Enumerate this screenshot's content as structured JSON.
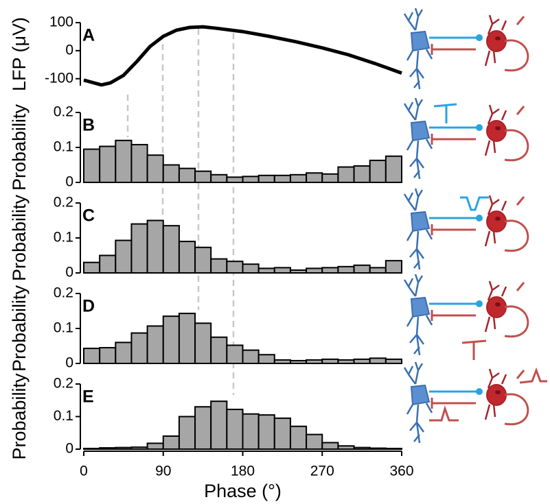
{
  "chart_data": [
    {
      "type": "line",
      "label": "A",
      "ylabel": "LFP (μV)",
      "color": "#000000",
      "x": [
        0,
        20,
        30,
        45,
        60,
        75,
        90,
        105,
        120,
        135,
        150,
        180,
        210,
        240,
        270,
        300,
        330,
        360
      ],
      "values": [
        -105,
        -122,
        -115,
        -88,
        -39,
        15,
        51,
        73,
        83,
        85,
        80,
        68,
        51,
        32,
        10,
        -15,
        -46,
        -80
      ],
      "xlim": [
        0,
        360
      ],
      "ylim": [
        -125,
        100
      ],
      "yticks": [
        100,
        0,
        -100
      ]
    },
    {
      "type": "histogram",
      "label": "B",
      "ylabel": "Probability",
      "color": "#a6a6a6",
      "bins": [
        0,
        18,
        36,
        54,
        72,
        90,
        108,
        126,
        144,
        162,
        180,
        198,
        216,
        234,
        252,
        270,
        288,
        306,
        324,
        342,
        360
      ],
      "values": [
        0.095,
        0.103,
        0.12,
        0.108,
        0.078,
        0.05,
        0.04,
        0.032,
        0.022,
        0.015,
        0.017,
        0.02,
        0.02,
        0.022,
        0.027,
        0.024,
        0.044,
        0.047,
        0.063,
        0.075
      ],
      "xlim": [
        0,
        360
      ],
      "ylim": [
        0,
        0.2
      ],
      "yticks": [
        0,
        0.1,
        0.2
      ]
    },
    {
      "type": "histogram",
      "label": "C",
      "ylabel": "Probability",
      "color": "#a6a6a6",
      "bins": [
        0,
        18,
        36,
        54,
        72,
        90,
        108,
        126,
        144,
        162,
        180,
        198,
        216,
        234,
        252,
        270,
        288,
        306,
        324,
        342,
        360
      ],
      "values": [
        0.03,
        0.05,
        0.093,
        0.14,
        0.15,
        0.135,
        0.09,
        0.073,
        0.04,
        0.033,
        0.025,
        0.013,
        0.015,
        0.008,
        0.013,
        0.015,
        0.018,
        0.022,
        0.015,
        0.035
      ],
      "xlim": [
        0,
        360
      ],
      "ylim": [
        0,
        0.2
      ],
      "yticks": [
        0,
        0.1,
        0.2
      ]
    },
    {
      "type": "histogram",
      "label": "D",
      "ylabel": "Probability",
      "color": "#a6a6a6",
      "bins": [
        0,
        18,
        36,
        54,
        72,
        90,
        108,
        126,
        144,
        162,
        180,
        198,
        216,
        234,
        252,
        270,
        288,
        306,
        324,
        342,
        360
      ],
      "values": [
        0.043,
        0.045,
        0.06,
        0.087,
        0.107,
        0.135,
        0.143,
        0.115,
        0.075,
        0.052,
        0.038,
        0.025,
        0.01,
        0.008,
        0.01,
        0.012,
        0.01,
        0.012,
        0.015,
        0.012
      ],
      "xlim": [
        0,
        360
      ],
      "ylim": [
        0,
        0.2
      ],
      "yticks": [
        0,
        0.1,
        0.2
      ]
    },
    {
      "type": "histogram",
      "label": "E",
      "ylabel": "Probability",
      "xlabel": "Phase (°)",
      "color": "#a6a6a6",
      "bins": [
        0,
        18,
        36,
        54,
        72,
        90,
        108,
        126,
        144,
        162,
        180,
        198,
        216,
        234,
        252,
        270,
        288,
        306,
        324,
        342,
        360
      ],
      "values": [
        0.002,
        0.004,
        0.005,
        0.006,
        0.018,
        0.04,
        0.1,
        0.13,
        0.147,
        0.122,
        0.108,
        0.105,
        0.095,
        0.07,
        0.045,
        0.02,
        0.01,
        0.005,
        0.003,
        0.002
      ],
      "xlim": [
        0,
        360
      ],
      "ylim": [
        0,
        0.2
      ],
      "yticks": [
        0,
        0.1,
        0.2
      ],
      "xticks": [
        0,
        90,
        180,
        270,
        360
      ]
    }
  ]
}
